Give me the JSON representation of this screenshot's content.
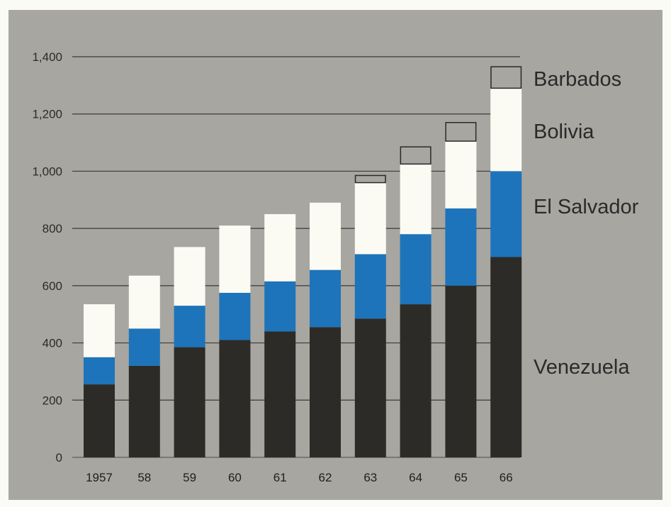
{
  "chart_data": {
    "type": "bar",
    "stacked": true,
    "categories": [
      "1957",
      "58",
      "59",
      "60",
      "61",
      "62",
      "63",
      "64",
      "65",
      "66"
    ],
    "series": [
      {
        "name": "Venezuela",
        "values": [
          255,
          320,
          385,
          410,
          440,
          455,
          485,
          535,
          600,
          700
        ]
      },
      {
        "name": "El Salvador",
        "values": [
          95,
          130,
          145,
          165,
          175,
          200,
          225,
          245,
          270,
          300
        ]
      },
      {
        "name": "Bolivia",
        "values": [
          185,
          185,
          205,
          235,
          235,
          235,
          250,
          245,
          235,
          290
        ]
      },
      {
        "name": "Barbados",
        "values": [
          0,
          0,
          0,
          0,
          0,
          0,
          25,
          60,
          65,
          75
        ]
      }
    ],
    "ylim": [
      0,
      1400
    ],
    "yticks": [
      0,
      200,
      400,
      600,
      800,
      1000,
      1200,
      1400
    ],
    "ytick_labels": [
      "0",
      "200",
      "400",
      "600",
      "800",
      "1,000",
      "1,200",
      "1,400"
    ],
    "grid": true,
    "legend_position": "right",
    "colors": {
      "Venezuela": "#2c2b27",
      "El Salvador": "#1d74ba",
      "Bolivia": "#fbfbf3",
      "Barbados": "none"
    },
    "title": "",
    "xlabel": "",
    "ylabel": ""
  }
}
